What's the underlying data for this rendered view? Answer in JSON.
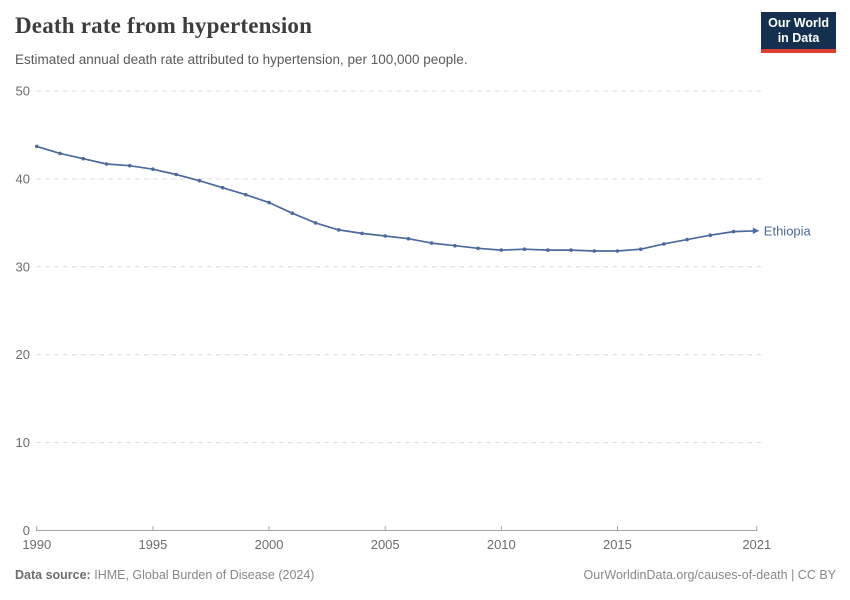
{
  "header": {
    "title": "Death rate from hypertension",
    "subtitle": "Estimated annual death rate attributed to hypertension, per 100,000 people."
  },
  "logo": {
    "line1": "Our World",
    "line2": "in Data"
  },
  "chart_data": {
    "type": "line",
    "title": "Death rate from hypertension",
    "subtitle": "Estimated annual death rate attributed to hypertension, per 100,000 people.",
    "x": [
      1990,
      1991,
      1992,
      1993,
      1994,
      1995,
      1996,
      1997,
      1998,
      1999,
      2000,
      2001,
      2002,
      2003,
      2004,
      2005,
      2006,
      2007,
      2008,
      2009,
      2010,
      2011,
      2012,
      2013,
      2014,
      2015,
      2016,
      2017,
      2018,
      2019,
      2020,
      2021
    ],
    "series": [
      {
        "name": "Ethiopia",
        "color": "#4C6A9C",
        "values": [
          43.7,
          42.9,
          42.3,
          41.7,
          41.5,
          41.1,
          40.5,
          39.8,
          39.0,
          38.2,
          37.3,
          36.1,
          35.0,
          34.2,
          33.8,
          33.5,
          33.2,
          32.7,
          32.4,
          32.1,
          31.9,
          32.0,
          31.9,
          31.9,
          31.8,
          31.8,
          32.0,
          32.6,
          33.1,
          33.6,
          34.0,
          34.1
        ]
      }
    ],
    "xlabel": "",
    "ylabel": "",
    "ylim": [
      0,
      50
    ],
    "yticks": [
      0,
      10,
      20,
      30,
      40,
      50
    ],
    "xticks": [
      1990,
      1995,
      2000,
      2005,
      2010,
      2015,
      2021
    ],
    "grid": "horizontal-dashed",
    "legend_position": "entity-label-at-line-end",
    "entity_label": "Ethiopia"
  },
  "footer": {
    "source_label": "Data source:",
    "source": "IHME, Global Burden of Disease (2024)",
    "link": "OurWorldinData.org/causes-of-death",
    "separator": " | ",
    "license": "CC BY"
  },
  "colors": {
    "line": "#4C6A9C",
    "grid": "#dcdcdc",
    "axis": "#a3a3a3",
    "tick_text": "#6e6e6e",
    "title": "#3d3d3d",
    "subtitle": "#5a5a5a",
    "footer": "#888888",
    "logo_bg": "#15304e",
    "logo_red": "#dc3e32"
  }
}
